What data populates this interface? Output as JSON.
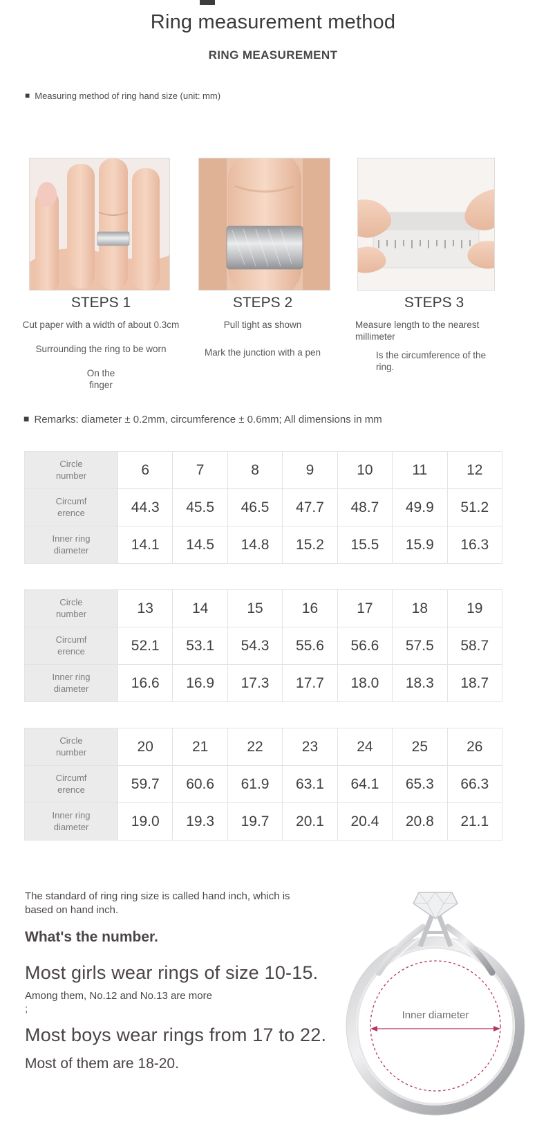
{
  "header": {
    "title": "Ring measurement method",
    "subtitle": "RING MEASUREMENT"
  },
  "bullet": "■",
  "intro_note": "Measuring method of ring hand size (unit: mm)",
  "steps": [
    {
      "heading": "STEPS 1",
      "lines": [
        "Cut paper with a width of about 0.3cm",
        "Surrounding the ring to be worn",
        "On the\nfinger"
      ]
    },
    {
      "heading": "STEPS 2",
      "lines": [
        "Pull tight as shown",
        "Mark the junction with a pen"
      ]
    },
    {
      "heading": "STEPS 3",
      "lines": [
        "Measure length to the nearest\nmillimeter",
        "Is the circumference of the\nring."
      ]
    }
  ],
  "remarks": "Remarks: diameter ± 0.2mm, circumference ± 0.6mm; All dimensions in mm",
  "size_tables": [
    {
      "rows": [
        {
          "label": "Circle\nnumber",
          "values": [
            "6",
            "7",
            "8",
            "9",
            "10",
            "11",
            "12"
          ]
        },
        {
          "label": "Circumf\nerence",
          "values": [
            "44.3",
            "45.5",
            "46.5",
            "47.7",
            "48.7",
            "49.9",
            "51.2"
          ]
        },
        {
          "label": "Inner ring\ndiameter",
          "values": [
            "14.1",
            "14.5",
            "14.8",
            "15.2",
            "15.5",
            "15.9",
            "16.3"
          ]
        }
      ]
    },
    {
      "rows": [
        {
          "label": "Circle\nnumber",
          "values": [
            "13",
            "14",
            "15",
            "16",
            "17",
            "18",
            "19"
          ]
        },
        {
          "label": "Circumf\nerence",
          "values": [
            "52.1",
            "53.1",
            "54.3",
            "55.6",
            "56.6",
            "57.5",
            "58.7"
          ]
        },
        {
          "label": "Inner ring\ndiameter",
          "values": [
            "16.6",
            "16.9",
            "17.3",
            "17.7",
            "18.0",
            "18.3",
            "18.7"
          ]
        }
      ]
    },
    {
      "rows": [
        {
          "label": "Circle\nnumber",
          "values": [
            "20",
            "21",
            "22",
            "23",
            "24",
            "25",
            "26"
          ]
        },
        {
          "label": "Circumf\nerence",
          "values": [
            "59.7",
            "60.6",
            "61.9",
            "63.1",
            "64.1",
            "65.3",
            "66.3"
          ]
        },
        {
          "label": "Inner ring\ndiameter",
          "values": [
            "19.0",
            "19.3",
            "19.7",
            "20.1",
            "20.4",
            "20.8",
            "21.1"
          ]
        }
      ]
    }
  ],
  "sizing_info": {
    "standard_note": "The standard of ring ring size is called hand inch, which is\nbased on hand inch.",
    "question": "What's the number.",
    "girls_sizes": "Most girls wear rings of size 10-15.",
    "girls_detail": "Among them, No.12 and No.13 are more\n;",
    "boys_sizes": "Most boys wear rings from 17 to 22.",
    "boys_detail": "Most of them are 18-20."
  },
  "diagram": {
    "label": "Inner diameter",
    "accent_color": "#b5355e"
  },
  "colors": {
    "accent": "#b5355e",
    "table_first_row_bg": "#f0f0f0",
    "table_label_bg": "#ebebeb",
    "table_border": "#e3e3e3"
  }
}
